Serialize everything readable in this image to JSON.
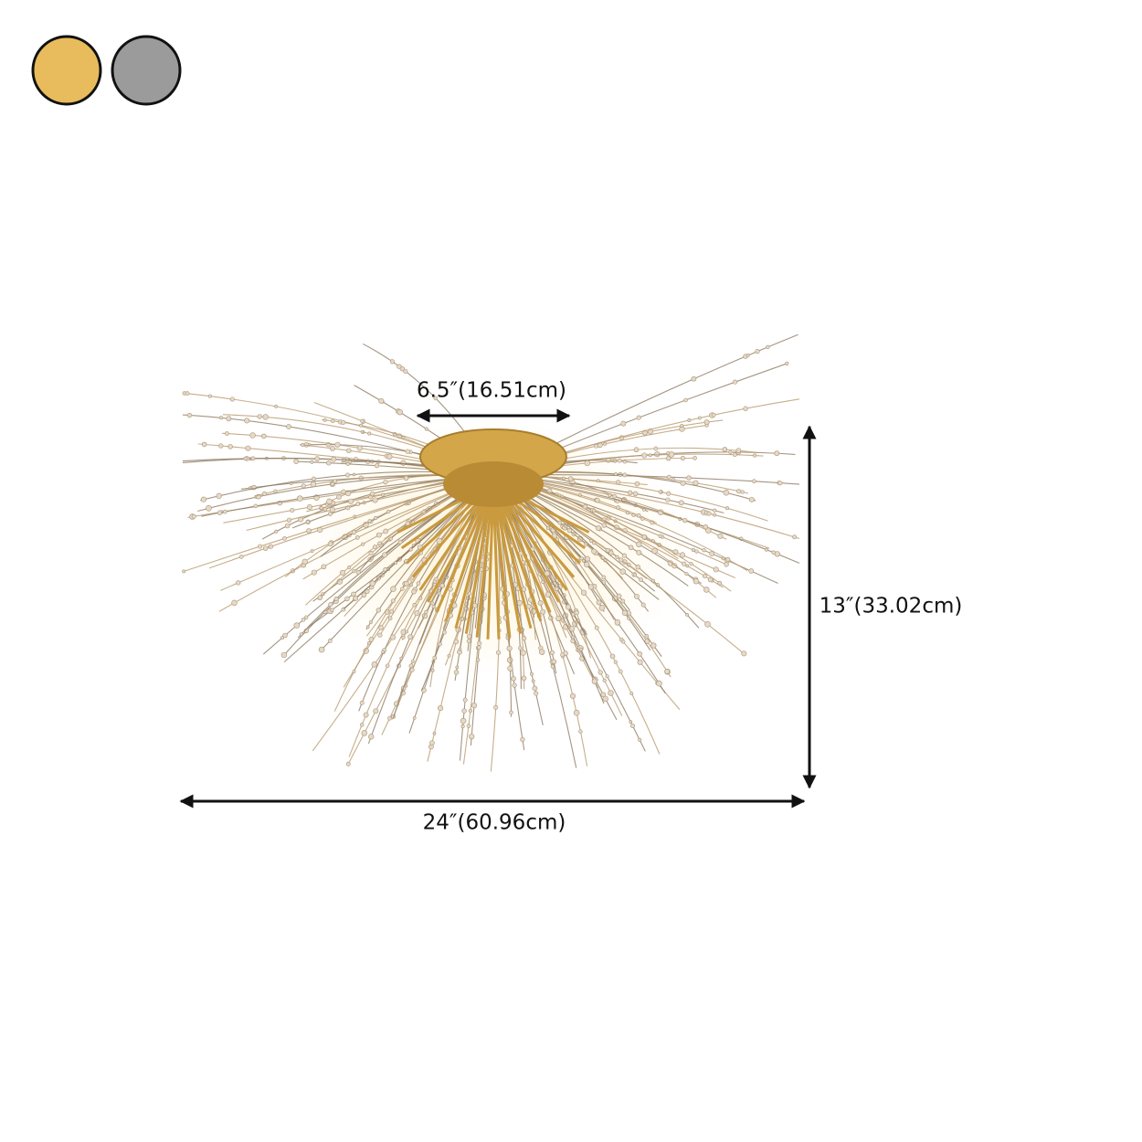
{
  "swatches": [
    {
      "color": "#e8bc5c"
    },
    {
      "color": "#9b9b9b"
    }
  ],
  "dimensions": {
    "top_width": "6.5″(16.51cm)",
    "height": "13″(33.02cm)",
    "width": "24″(60.96cm)"
  }
}
